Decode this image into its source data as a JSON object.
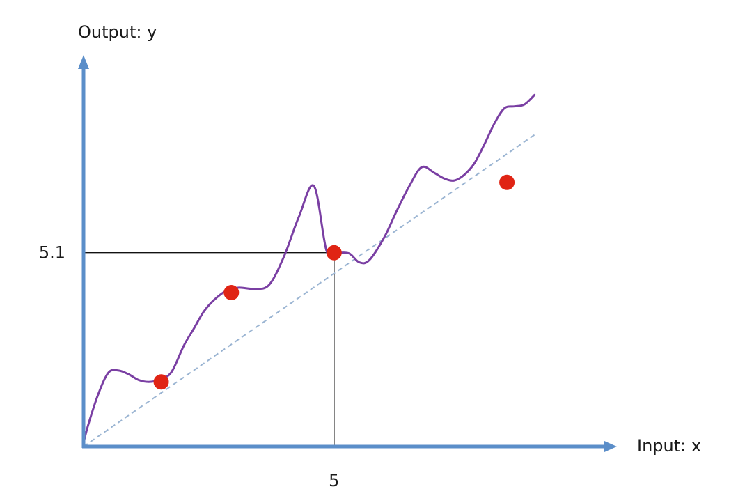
{
  "chart_data": {
    "type": "line",
    "xlabel": "Input: x",
    "ylabel": "Output: y",
    "xlim": [
      0,
      10.7
    ],
    "ylim": [
      0,
      10.3
    ],
    "grid": false,
    "x_ticks": [
      {
        "value": 5,
        "label": "5"
      }
    ],
    "y_ticks": [
      {
        "value": 5.1,
        "label": "5.1"
      }
    ],
    "reference_lines": [
      {
        "type": "vertical",
        "x": 5,
        "y_end": 5.1
      },
      {
        "type": "horizontal",
        "y": 5.1,
        "x_end": 5
      }
    ],
    "series": [
      {
        "role": "fitted-curve",
        "style": "solid",
        "color": "#7a3fa3",
        "x": [
          0,
          0.1,
          0.3,
          0.5,
          0.7,
          0.9,
          1.1,
          1.3,
          1.5,
          1.75,
          2.0,
          2.2,
          2.4,
          2.6,
          2.85,
          3.1,
          3.4,
          3.7,
          4.0,
          4.3,
          4.6,
          4.85,
          5.05,
          5.3,
          5.5,
          5.7,
          6.0,
          6.25,
          6.5,
          6.75,
          7.0,
          7.2,
          7.4,
          7.6,
          7.8,
          8.0,
          8.2,
          8.4,
          8.6,
          8.8,
          9.0
        ],
        "y": [
          0.1,
          0.6,
          1.4,
          1.95,
          2.0,
          1.9,
          1.75,
          1.7,
          1.75,
          1.95,
          2.65,
          3.1,
          3.55,
          3.85,
          4.1,
          4.18,
          4.15,
          4.25,
          5.0,
          6.05,
          6.85,
          5.15,
          5.1,
          5.08,
          4.85,
          4.9,
          5.5,
          6.2,
          6.85,
          7.35,
          7.2,
          7.05,
          7.0,
          7.15,
          7.45,
          7.95,
          8.5,
          8.9,
          8.95,
          9.0,
          9.25
        ]
      },
      {
        "role": "trend-line",
        "style": "dashed",
        "color": "#9ab4d2",
        "x": [
          0,
          9.0
        ],
        "y": [
          0,
          8.2
        ]
      },
      {
        "role": "sample-points",
        "style": "points",
        "color": "#e02414",
        "x": [
          1.55,
          2.95,
          5.0,
          8.45
        ],
        "y": [
          1.7,
          4.05,
          5.1,
          6.95
        ]
      }
    ]
  }
}
